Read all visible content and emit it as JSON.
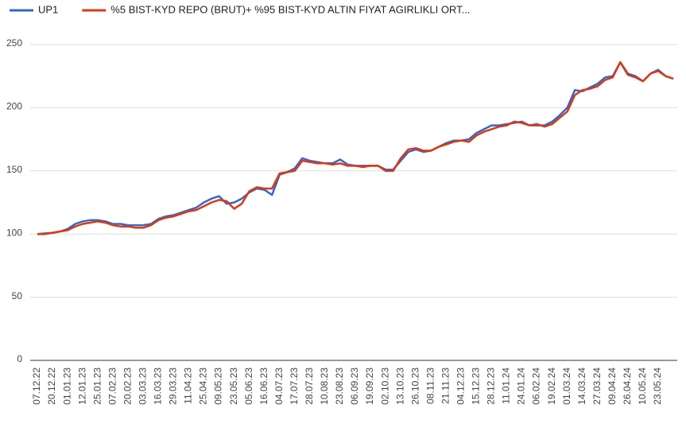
{
  "chart_data": {
    "type": "line",
    "categories": [
      "07.12.22",
      null,
      "20.12.22",
      null,
      "01.01.23",
      null,
      "12.01.23",
      null,
      "25.01.23",
      null,
      "07.02.23",
      null,
      "20.02.23",
      null,
      "03.03.23",
      null,
      "16.03.23",
      null,
      "29.03.23",
      null,
      "11.04.23",
      null,
      "25.04.23",
      null,
      "09.05.23",
      null,
      "23.05.23",
      null,
      "05.06.23",
      null,
      "16.06.23",
      null,
      "04.07.23",
      null,
      "17.07.23",
      null,
      "28.07.23",
      null,
      "10.08.23",
      null,
      "23.08.23",
      null,
      "06.09.23",
      null,
      "19.09.23",
      null,
      "02.10.23",
      null,
      "13.10.23",
      null,
      "26.10.23",
      null,
      "08.11.23",
      null,
      "21.11.23",
      null,
      "04.12.23",
      null,
      "15.12.23",
      null,
      "28.12.23",
      null,
      "11.01.24",
      null,
      "24.01.24",
      null,
      "06.02.24",
      null,
      "19.02.24",
      null,
      "01.03.24",
      null,
      "14.03.24",
      null,
      "27.03.24",
      null,
      "09.04.24",
      null,
      "26.04.24",
      null,
      "10.05.24",
      null,
      "23.05.24",
      null,
      null
    ],
    "series": [
      {
        "name": "UP1",
        "color": "#3366cc",
        "values": [
          100,
          100.5,
          101,
          102,
          104,
          108,
          110,
          111,
          111,
          110,
          108,
          108,
          107,
          107,
          107,
          108,
          112,
          114,
          115,
          117,
          119,
          121,
          125,
          128,
          130,
          124,
          125,
          128,
          133,
          136,
          135,
          131,
          147,
          149,
          152,
          160,
          158,
          157,
          156,
          156,
          159,
          155,
          154,
          154,
          154,
          154,
          151,
          151,
          158,
          165,
          167,
          165,
          166,
          169,
          172,
          174,
          174,
          175,
          180,
          183,
          186,
          186,
          187,
          188,
          189,
          186,
          186,
          186,
          189,
          194,
          200,
          214,
          213,
          216,
          219,
          224,
          225,
          236,
          227,
          225,
          221,
          227,
          230,
          225,
          223
        ]
      },
      {
        "name": "%5 BIST-KYD REPO (BRUT)+ %95 BIST-KYD ALTIN FIYAT AGIRLIKLI ORT...",
        "color": "#dc3912",
        "values": [
          100,
          100,
          101,
          102,
          103,
          106,
          108,
          109,
          110,
          109,
          107,
          106,
          106,
          105,
          105,
          107,
          111,
          113,
          114,
          116,
          118,
          119,
          122,
          125,
          127,
          126,
          120,
          124,
          134,
          137,
          136,
          136,
          148,
          149,
          150,
          158,
          157,
          156,
          156,
          155,
          156,
          154,
          154,
          153,
          154,
          154,
          150,
          150,
          160,
          167,
          168,
          166,
          166,
          169,
          171,
          173,
          174,
          173,
          178,
          181,
          183,
          185,
          186,
          189,
          188,
          186,
          187,
          185,
          187,
          192,
          197,
          210,
          214,
          215,
          217,
          222,
          224,
          236,
          226,
          224,
          221,
          227,
          229,
          225,
          223
        ]
      }
    ],
    "ylim": [
      0,
      250
    ],
    "yticks": [
      0,
      50,
      100,
      150,
      200,
      250
    ],
    "grid": true
  }
}
